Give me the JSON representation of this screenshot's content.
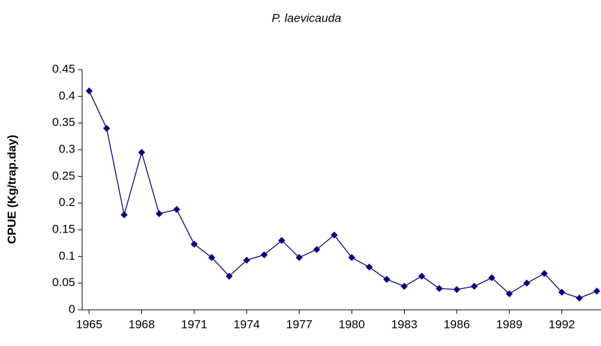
{
  "chart_data": {
    "type": "line",
    "title": "P. laevicauda",
    "y_label": "CPUE (Kg/trap.day)",
    "x": [
      1965,
      1966,
      1967,
      1968,
      1969,
      1970,
      1971,
      1972,
      1973,
      1974,
      1975,
      1976,
      1977,
      1978,
      1979,
      1980,
      1981,
      1982,
      1983,
      1984,
      1985,
      1986,
      1987,
      1988,
      1989,
      1990,
      1991,
      1992,
      1993,
      1994
    ],
    "series": [
      {
        "name": "P. laevicauda",
        "color": "#000080",
        "values": [
          0.41,
          0.34,
          0.178,
          0.295,
          0.18,
          0.188,
          0.123,
          0.098,
          0.063,
          0.093,
          0.103,
          0.13,
          0.098,
          0.113,
          0.14,
          0.098,
          0.08,
          0.057,
          0.044,
          0.063,
          0.04,
          0.038,
          0.044,
          0.06,
          0.03,
          0.05,
          0.068,
          0.033,
          0.022,
          0.035
        ]
      }
    ],
    "xlim": [
      1965,
      1994
    ],
    "xticks": [
      1965,
      1968,
      1971,
      1974,
      1977,
      1980,
      1983,
      1986,
      1989,
      1992
    ],
    "ylim": [
      0,
      0.45
    ],
    "yticks": [
      0,
      0.05,
      0.1,
      0.15,
      0.2,
      0.25,
      0.3,
      0.35,
      0.4,
      0.45
    ],
    "grid": false
  }
}
